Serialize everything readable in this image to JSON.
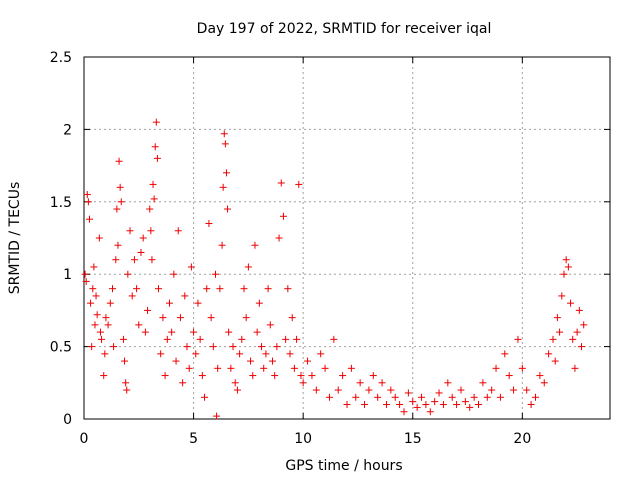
{
  "chart_data": {
    "type": "scatter",
    "title": "Day 197 of 2022, SRMTID for receiver iqal",
    "xlabel": "GPS time / hours",
    "ylabel": "SRMTID / TECUs",
    "xlim": [
      0,
      24
    ],
    "ylim": [
      0,
      2.5
    ],
    "x_ticks": [
      0,
      5,
      10,
      15,
      20
    ],
    "x_tick_labels": [
      "0",
      "5",
      "10",
      "15",
      "20"
    ],
    "y_ticks": [
      0,
      0.5,
      1,
      1.5,
      2,
      2.5
    ],
    "y_tick_labels": [
      "0",
      "0.5",
      "1",
      "1.5",
      "2",
      "2.5"
    ],
    "grid": true,
    "marker": "+",
    "color": "#ee0000",
    "series": [
      {
        "name": "SRMTID",
        "points": [
          [
            0.05,
            1.0
          ],
          [
            0.1,
            0.95
          ],
          [
            0.15,
            1.55
          ],
          [
            0.2,
            1.5
          ],
          [
            0.25,
            1.38
          ],
          [
            0.3,
            0.8
          ],
          [
            0.35,
            0.5
          ],
          [
            0.4,
            0.9
          ],
          [
            0.45,
            1.05
          ],
          [
            0.5,
            0.65
          ],
          [
            0.55,
            0.85
          ],
          [
            0.6,
            0.72
          ],
          [
            0.7,
            1.25
          ],
          [
            0.75,
            0.6
          ],
          [
            0.8,
            0.55
          ],
          [
            0.9,
            0.3
          ],
          [
            0.95,
            0.45
          ],
          [
            1.0,
            0.7
          ],
          [
            1.1,
            0.65
          ],
          [
            1.2,
            0.8
          ],
          [
            1.3,
            0.9
          ],
          [
            1.35,
            0.5
          ],
          [
            1.45,
            1.1
          ],
          [
            1.5,
            1.45
          ],
          [
            1.55,
            1.2
          ],
          [
            1.6,
            1.78
          ],
          [
            1.65,
            1.6
          ],
          [
            1.7,
            1.5
          ],
          [
            1.8,
            0.55
          ],
          [
            1.85,
            0.4
          ],
          [
            1.9,
            0.25
          ],
          [
            1.95,
            0.2
          ],
          [
            2.0,
            1.0
          ],
          [
            2.1,
            1.3
          ],
          [
            2.2,
            0.85
          ],
          [
            2.3,
            1.1
          ],
          [
            2.4,
            0.9
          ],
          [
            2.5,
            0.65
          ],
          [
            2.6,
            1.15
          ],
          [
            2.7,
            1.25
          ],
          [
            2.8,
            0.6
          ],
          [
            2.9,
            0.75
          ],
          [
            3.0,
            1.45
          ],
          [
            3.05,
            1.3
          ],
          [
            3.1,
            1.1
          ],
          [
            3.15,
            1.62
          ],
          [
            3.2,
            1.52
          ],
          [
            3.25,
            1.88
          ],
          [
            3.3,
            2.05
          ],
          [
            3.35,
            1.8
          ],
          [
            3.4,
            0.9
          ],
          [
            3.5,
            0.45
          ],
          [
            3.6,
            0.7
          ],
          [
            3.7,
            0.3
          ],
          [
            3.8,
            0.55
          ],
          [
            3.9,
            0.8
          ],
          [
            4.0,
            0.6
          ],
          [
            4.1,
            1.0
          ],
          [
            4.2,
            0.4
          ],
          [
            4.3,
            1.3
          ],
          [
            4.4,
            0.7
          ],
          [
            4.5,
            0.25
          ],
          [
            4.6,
            0.85
          ],
          [
            4.7,
            0.5
          ],
          [
            4.8,
            0.35
          ],
          [
            4.9,
            1.05
          ],
          [
            5.0,
            0.6
          ],
          [
            5.1,
            0.45
          ],
          [
            5.2,
            0.8
          ],
          [
            5.3,
            0.55
          ],
          [
            5.4,
            0.3
          ],
          [
            5.5,
            0.15
          ],
          [
            5.6,
            0.9
          ],
          [
            5.7,
            1.35
          ],
          [
            5.8,
            0.7
          ],
          [
            5.9,
            0.5
          ],
          [
            6.0,
            1.0
          ],
          [
            6.05,
            0.02
          ],
          [
            6.1,
            0.35
          ],
          [
            6.2,
            0.9
          ],
          [
            6.3,
            1.2
          ],
          [
            6.35,
            1.6
          ],
          [
            6.4,
            1.97
          ],
          [
            6.45,
            1.9
          ],
          [
            6.5,
            1.7
          ],
          [
            6.55,
            1.45
          ],
          [
            6.6,
            0.6
          ],
          [
            6.7,
            0.35
          ],
          [
            6.8,
            0.5
          ],
          [
            6.9,
            0.25
          ],
          [
            7.0,
            0.2
          ],
          [
            7.1,
            0.45
          ],
          [
            7.2,
            0.55
          ],
          [
            7.3,
            0.9
          ],
          [
            7.4,
            0.7
          ],
          [
            7.5,
            1.05
          ],
          [
            7.6,
            0.4
          ],
          [
            7.7,
            0.3
          ],
          [
            7.8,
            1.2
          ],
          [
            7.9,
            0.6
          ],
          [
            8.0,
            0.8
          ],
          [
            8.1,
            0.5
          ],
          [
            8.2,
            0.35
          ],
          [
            8.3,
            0.45
          ],
          [
            8.4,
            0.9
          ],
          [
            8.5,
            0.65
          ],
          [
            8.6,
            0.4
          ],
          [
            8.7,
            0.3
          ],
          [
            8.8,
            0.5
          ],
          [
            8.9,
            1.25
          ],
          [
            9.0,
            1.63
          ],
          [
            9.1,
            1.4
          ],
          [
            9.2,
            0.55
          ],
          [
            9.3,
            0.9
          ],
          [
            9.4,
            0.45
          ],
          [
            9.5,
            0.7
          ],
          [
            9.6,
            0.35
          ],
          [
            9.7,
            0.55
          ],
          [
            9.8,
            1.62
          ],
          [
            9.9,
            0.3
          ],
          [
            10.0,
            0.25
          ],
          [
            10.2,
            0.4
          ],
          [
            10.4,
            0.3
          ],
          [
            10.6,
            0.2
          ],
          [
            10.8,
            0.45
          ],
          [
            11.0,
            0.35
          ],
          [
            11.2,
            0.15
          ],
          [
            11.4,
            0.55
          ],
          [
            11.6,
            0.2
          ],
          [
            11.8,
            0.3
          ],
          [
            12.0,
            0.1
          ],
          [
            12.2,
            0.35
          ],
          [
            12.4,
            0.15
          ],
          [
            12.6,
            0.25
          ],
          [
            12.8,
            0.1
          ],
          [
            13.0,
            0.2
          ],
          [
            13.2,
            0.3
          ],
          [
            13.4,
            0.15
          ],
          [
            13.6,
            0.25
          ],
          [
            13.8,
            0.1
          ],
          [
            14.0,
            0.2
          ],
          [
            14.2,
            0.15
          ],
          [
            14.4,
            0.1
          ],
          [
            14.6,
            0.05
          ],
          [
            14.8,
            0.18
          ],
          [
            15.0,
            0.12
          ],
          [
            15.2,
            0.08
          ],
          [
            15.4,
            0.15
          ],
          [
            15.6,
            0.1
          ],
          [
            15.8,
            0.05
          ],
          [
            16.0,
            0.12
          ],
          [
            16.2,
            0.18
          ],
          [
            16.4,
            0.1
          ],
          [
            16.6,
            0.25
          ],
          [
            16.8,
            0.15
          ],
          [
            17.0,
            0.1
          ],
          [
            17.2,
            0.2
          ],
          [
            17.4,
            0.12
          ],
          [
            17.6,
            0.08
          ],
          [
            17.8,
            0.15
          ],
          [
            18.0,
            0.1
          ],
          [
            18.2,
            0.25
          ],
          [
            18.4,
            0.15
          ],
          [
            18.6,
            0.2
          ],
          [
            18.8,
            0.35
          ],
          [
            19.0,
            0.15
          ],
          [
            19.2,
            0.45
          ],
          [
            19.4,
            0.3
          ],
          [
            19.6,
            0.2
          ],
          [
            19.8,
            0.55
          ],
          [
            20.0,
            0.35
          ],
          [
            20.2,
            0.2
          ],
          [
            20.4,
            0.1
          ],
          [
            20.6,
            0.15
          ],
          [
            20.8,
            0.3
          ],
          [
            21.0,
            0.25
          ],
          [
            21.2,
            0.45
          ],
          [
            21.4,
            0.55
          ],
          [
            21.5,
            0.4
          ],
          [
            21.6,
            0.7
          ],
          [
            21.7,
            0.6
          ],
          [
            21.8,
            0.85
          ],
          [
            21.9,
            1.0
          ],
          [
            22.0,
            1.1
          ],
          [
            22.1,
            1.05
          ],
          [
            22.2,
            0.8
          ],
          [
            22.3,
            0.55
          ],
          [
            22.4,
            0.35
          ],
          [
            22.5,
            0.6
          ],
          [
            22.6,
            0.75
          ],
          [
            22.7,
            0.5
          ],
          [
            22.8,
            0.65
          ]
        ]
      }
    ]
  }
}
